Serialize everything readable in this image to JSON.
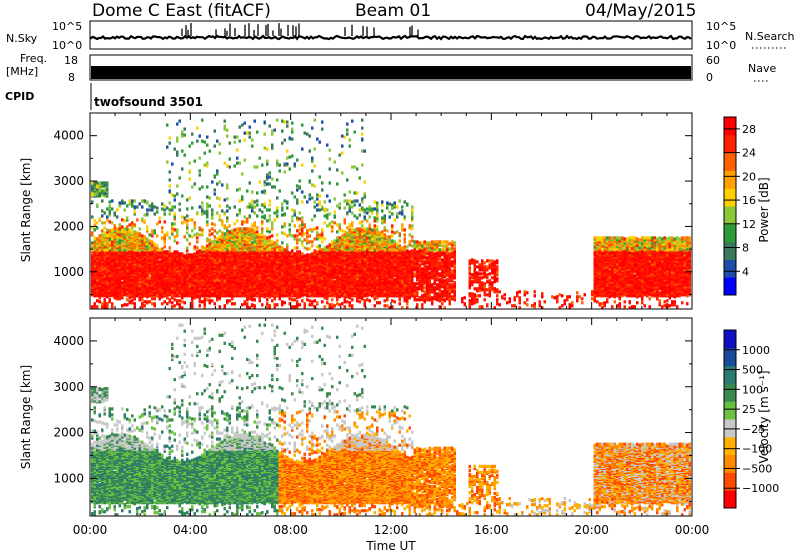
{
  "header": {
    "radar": "Dome C East (fitACF)",
    "beam": "Beam 01",
    "date": "04/May/2015"
  },
  "strips": {
    "nsky_label": "N.Sky",
    "nsky_ticks": [
      "10^5",
      "10^0"
    ],
    "nsearch_label": "N.Search",
    "freq_label": "Freq.",
    "freq_unit": "[MHz]",
    "freq_ticks": [
      "18",
      "8"
    ],
    "nave_label": "Nave",
    "nave_ticks": [
      "60",
      "0"
    ],
    "cpid_label": "CPID",
    "cpid_value": "twofsound 3501"
  },
  "colors": {
    "power": [
      "#0000ff",
      "#1e4ea8",
      "#3a7a5a",
      "#2f9a3a",
      "#8ac83a",
      "#ffd000",
      "#ffa000",
      "#ff6000",
      "#ff2000",
      "#ff0000"
    ],
    "velocity": [
      "#ff0000",
      "#ff4a00",
      "#ff8a00",
      "#ffb000",
      "#c8c8c8",
      "#6ac040",
      "#3a8a50",
      "#2a7a70",
      "#1a4a9a",
      "#1010c0"
    ]
  },
  "chart_data": [
    {
      "type": "heatmap",
      "name": "power-panel",
      "xlabel": "",
      "ylabel": "Slant Range [km]",
      "x_ticks": [
        "00:00",
        "04:00",
        "08:00",
        "12:00",
        "16:00",
        "20:00",
        "00:00"
      ],
      "x_range_hours": [
        0,
        24
      ],
      "y_ticks": [
        "1000",
        "2000",
        "3000",
        "4000"
      ],
      "y_range_km": [
        180,
        4500
      ],
      "colorbar_label": "Power [dB]",
      "colorbar_ticks": [
        "4",
        "8",
        "12",
        "16",
        "20",
        "24",
        "28"
      ],
      "colorbar_range": [
        0,
        30
      ]
    },
    {
      "type": "heatmap",
      "name": "velocity-panel",
      "xlabel": "Time UT",
      "ylabel": "Slant Range [km]",
      "x_ticks": [
        "00:00",
        "04:00",
        "08:00",
        "12:00",
        "16:00",
        "20:00",
        "00:00"
      ],
      "x_range_hours": [
        0,
        24
      ],
      "y_ticks": [
        "1000",
        "2000",
        "3000",
        "4000"
      ],
      "y_range_km": [
        180,
        4500
      ],
      "colorbar_label": "Velocity [m s⁻¹]",
      "colorbar_ticks": [
        "1000",
        "500",
        "100",
        "25",
        "−25",
        "−100",
        "−500",
        "−1000"
      ]
    }
  ]
}
